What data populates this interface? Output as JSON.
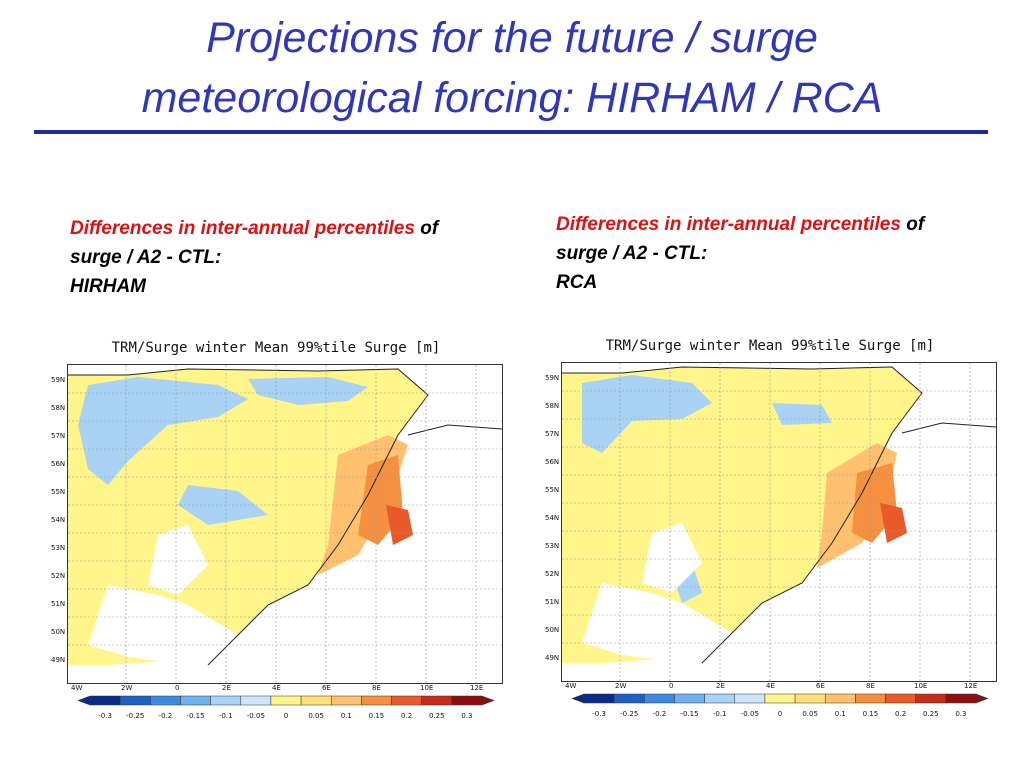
{
  "slide": {
    "title_line1": "Projections for the future / surge",
    "title_line2": "meteorological forcing: HIRHAM / RCA"
  },
  "left": {
    "caption_red": "Differences in inter-annual percentiles",
    "caption_black_1": " of  surge / A2 - CTL:",
    "caption_black_2": "HIRHAM",
    "panel_title": "TRM/Surge winter Mean 99%tile Surge [m]"
  },
  "right": {
    "caption_red": "Differences in inter-annual percentiles",
    "caption_black_1": " of  surge / A2 - CTL:",
    "caption_black_2": "RCA",
    "panel_title": "TRM/Surge winter Mean 99%tile Surge [m]"
  },
  "map_axes": {
    "lat_labels": [
      "59N",
      "58N",
      "57N",
      "56N",
      "55N",
      "54N",
      "53N",
      "52N",
      "51N",
      "50N",
      "49N"
    ],
    "lon_labels": [
      "4W",
      "2W",
      "0",
      "2E",
      "4E",
      "6E",
      "8E",
      "10E",
      "12E"
    ]
  },
  "colorbar": {
    "labels": [
      "-0.3",
      "-0.25",
      "-0.2",
      "-0.15",
      "-0.1",
      "-0.05",
      "0",
      "0.05",
      "0.1",
      "0.15",
      "0.2",
      "0.25",
      "0.3"
    ],
    "colors": [
      "#0a2a8a",
      "#1f5fc2",
      "#3d8be0",
      "#6fb0f0",
      "#a9d2f5",
      "#cfe6fa",
      "#fff58a",
      "#ffe07a",
      "#ffc070",
      "#f49040",
      "#e85a2a",
      "#c62a1a",
      "#8a1010"
    ]
  }
}
